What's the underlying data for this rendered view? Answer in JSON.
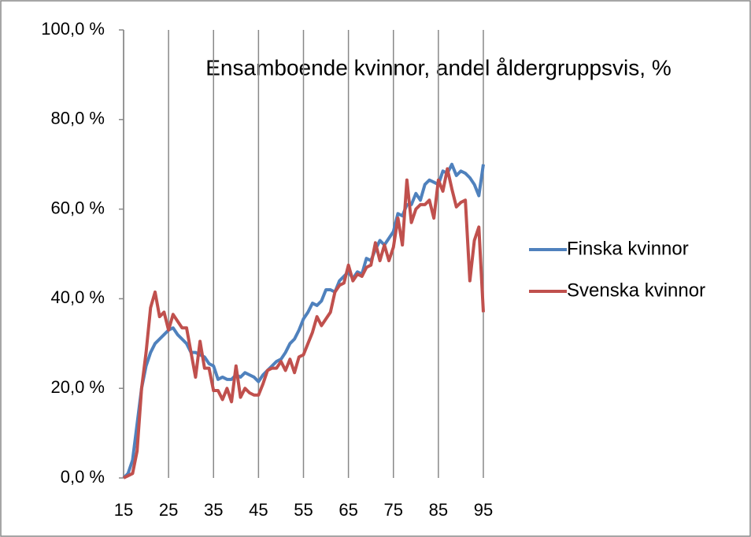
{
  "chart_data": {
    "type": "line",
    "title": "Ensamboende kvinnor, andel åldergruppsvis, %",
    "x": [
      15,
      16,
      17,
      18,
      19,
      20,
      21,
      22,
      23,
      24,
      25,
      26,
      27,
      28,
      29,
      30,
      31,
      32,
      33,
      34,
      35,
      36,
      37,
      38,
      39,
      40,
      41,
      42,
      43,
      44,
      45,
      46,
      47,
      48,
      49,
      50,
      51,
      52,
      53,
      54,
      55,
      56,
      57,
      58,
      59,
      60,
      61,
      62,
      63,
      64,
      65,
      66,
      67,
      68,
      69,
      70,
      71,
      72,
      73,
      74,
      75,
      76,
      77,
      78,
      79,
      80,
      81,
      82,
      83,
      84,
      85,
      86,
      87,
      88,
      89,
      90,
      91,
      92,
      93,
      94,
      95
    ],
    "series": [
      {
        "name": "Finska kvinnor",
        "color": "#4f81bd",
        "values": [
          0,
          1,
          4,
          12,
          20,
          25,
          28,
          30,
          31,
          32,
          33,
          33.5,
          32,
          31,
          30,
          28,
          28,
          27.5,
          27,
          25.5,
          25,
          22,
          22.5,
          22,
          22,
          23,
          22.5,
          23.5,
          23,
          22.5,
          21.5,
          23,
          24,
          25,
          26,
          26.5,
          28,
          30,
          31,
          33,
          35.5,
          37,
          39,
          38.5,
          39.5,
          42,
          42,
          41.5,
          44,
          45,
          46,
          44.5,
          46,
          45.5,
          49,
          48.5,
          51,
          53,
          52,
          53.5,
          55,
          59,
          58.5,
          61,
          61,
          63.5,
          62,
          65.5,
          66.5,
          66,
          65.5,
          68.5,
          68,
          70,
          67.5,
          68.5,
          68,
          67,
          65.5,
          63,
          70
        ]
      },
      {
        "name": "Svenska kvinnor",
        "color": "#c0504d",
        "values": [
          0,
          0.5,
          1,
          6,
          20,
          28,
          38,
          41.5,
          36,
          37,
          33,
          36.5,
          35,
          33.5,
          33.5,
          28,
          22.5,
          30.5,
          24.5,
          24.5,
          19.5,
          19.5,
          17.5,
          20,
          17,
          25,
          18,
          20,
          19,
          18.5,
          18.5,
          21,
          24,
          24.5,
          24.5,
          26,
          24,
          26.5,
          23.5,
          27,
          27.5,
          30,
          32.5,
          36,
          34,
          35.5,
          37,
          41.5,
          43,
          43.5,
          47.5,
          44,
          45.5,
          45,
          47,
          47.5,
          52.5,
          48.5,
          52,
          48.5,
          51.5,
          58,
          52,
          66.5,
          57,
          60,
          61,
          61,
          62,
          58,
          66.5,
          64,
          69,
          64.5,
          60.5,
          61.5,
          62,
          44,
          53,
          56,
          37
        ]
      }
    ],
    "xlim": [
      15,
      95
    ],
    "xticks": [
      15,
      25,
      35,
      45,
      55,
      65,
      75,
      85,
      95
    ],
    "ylim": [
      0,
      100
    ],
    "yticks": [
      {
        "value": 0,
        "label": "0,0 %"
      },
      {
        "value": 20,
        "label": "20,0 %"
      },
      {
        "value": 40,
        "label": "40,0 %"
      },
      {
        "value": 60,
        "label": "60,0 %"
      },
      {
        "value": 80,
        "label": "80,0 %"
      },
      {
        "value": 100,
        "label": "100,0 %"
      }
    ],
    "grid": "x",
    "legend": "right"
  }
}
